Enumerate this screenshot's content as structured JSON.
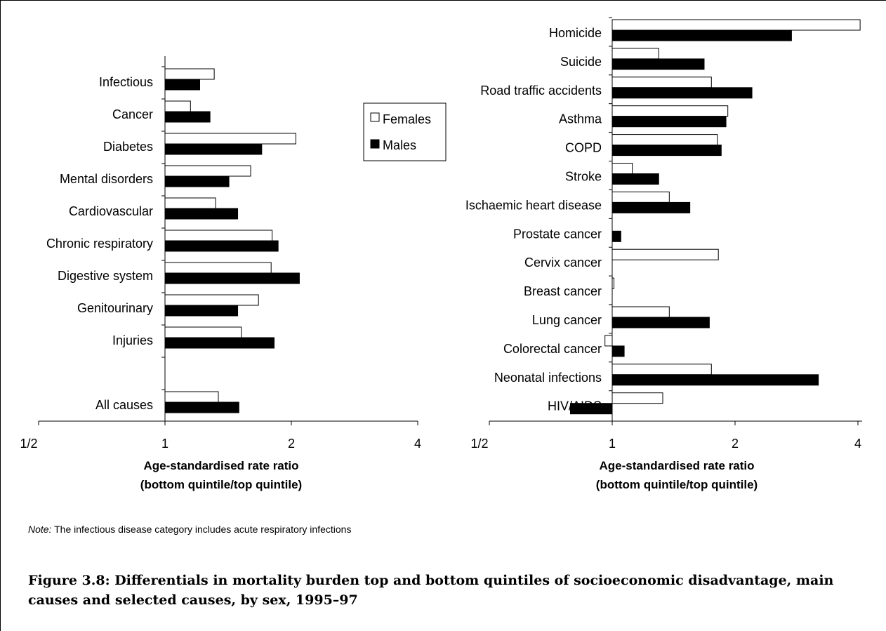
{
  "note": {
    "prefix": "Note:",
    "text": " The infectious disease category includes acute respiratory infections"
  },
  "caption": "Figure 3.8: Differentials in mortality burden top and bottom quintiles of socioeconomic disadvantage, main causes and selected causes, by sex, 1995–97",
  "legend": {
    "females": "Females",
    "males": "Males"
  },
  "colors": {
    "females": "#ffffff",
    "males": "#000000",
    "outline": "#000000"
  },
  "chart_data": [
    {
      "type": "bar",
      "orientation": "horizontal",
      "scale": "log2",
      "xlim": [
        0.5,
        4
      ],
      "ticks": [
        0.5,
        1,
        2,
        4
      ],
      "tick_labels": [
        "1/2",
        "1",
        "2",
        "4"
      ],
      "xlabel": [
        "Age-standardised rate ratio",
        "(bottom quintile/top quintile)"
      ],
      "categories": [
        "Infectious",
        "Cancer",
        "Diabetes",
        "Mental disorders",
        "Cardiovascular",
        "Chronic respiratory",
        "Digestive system",
        "Genitourinary",
        "Injuries",
        "",
        "All causes"
      ],
      "series": [
        {
          "name": "Females",
          "values": [
            1.31,
            1.15,
            2.05,
            1.6,
            1.32,
            1.8,
            1.79,
            1.67,
            1.52,
            null,
            1.34
          ]
        },
        {
          "name": "Males",
          "values": [
            1.21,
            1.28,
            1.7,
            1.42,
            1.49,
            1.86,
            2.09,
            1.49,
            1.82,
            null,
            1.5
          ]
        }
      ]
    },
    {
      "type": "bar",
      "orientation": "horizontal",
      "scale": "log2",
      "xlim": [
        0.5,
        4.1
      ],
      "ticks": [
        0.5,
        1,
        2,
        4
      ],
      "tick_labels": [
        "1/2",
        "1",
        "2",
        "4"
      ],
      "xlabel": [
        "Age-standardised rate ratio",
        "(bottom quintile/top quintile)"
      ],
      "categories": [
        "Homicide",
        "Suicide",
        "Road traffic accidents",
        "Asthma",
        "COPD",
        "Stroke",
        "Ischaemic heart disease",
        "Prostate cancer",
        "Cervix cancer",
        "Breast cancer",
        "Lung cancer",
        "Colorectal cancer",
        "Neonatal infections",
        "HIV/AIDS"
      ],
      "series": [
        {
          "name": "Females",
          "values": [
            4.05,
            1.3,
            1.75,
            1.92,
            1.81,
            1.12,
            1.38,
            null,
            1.82,
            1.01,
            1.38,
            0.96,
            1.75,
            1.33
          ]
        },
        {
          "name": "Males",
          "values": [
            2.75,
            1.68,
            2.2,
            1.9,
            1.85,
            1.3,
            1.55,
            1.05,
            null,
            null,
            1.73,
            1.07,
            3.2,
            0.79
          ]
        }
      ]
    }
  ]
}
